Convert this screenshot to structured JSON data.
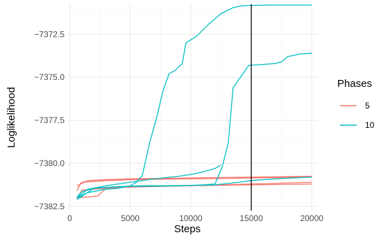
{
  "chart_data": {
    "type": "line",
    "xlabel": "Steps",
    "ylabel": "Loglikelihood",
    "xlim": [
      -200,
      20500
    ],
    "ylim": [
      -7382.75,
      -7370.75
    ],
    "xticks": [
      0,
      5000,
      10000,
      15000,
      20000
    ],
    "xtick_labels": [
      "0",
      "5000",
      "10000",
      "15000",
      "20000"
    ],
    "yticks": [
      -7382.5,
      -7380.0,
      -7377.5,
      -7375.0,
      -7372.5
    ],
    "ytick_labels": [
      "−7382.5",
      "−7380.0",
      "−7377.5",
      "−7375.0",
      "−7372.5"
    ],
    "grid": true,
    "vline_x": 15000,
    "legend": {
      "title": "Phases",
      "position": "right",
      "entries": [
        {
          "label": "5",
          "color": "#F8766D"
        },
        {
          "label": "10",
          "color": "#00BFC4"
        }
      ]
    },
    "series": [
      {
        "group": "5",
        "color": "#F8766D",
        "x": [
          600,
          1500,
          2300,
          3000,
          5000,
          10000,
          15000,
          20000
        ],
        "y": [
          -7382.0,
          -7381.95,
          -7381.9,
          -7381.45,
          -7381.35,
          -7381.3,
          -7381.2,
          -7381.1
        ]
      },
      {
        "group": "5",
        "color": "#F8766D",
        "x": [
          600,
          900,
          1500,
          3000,
          5000,
          10000,
          15000,
          20000
        ],
        "y": [
          -7381.6,
          -7381.15,
          -7381.0,
          -7380.95,
          -7380.9,
          -7380.85,
          -7380.8,
          -7380.75
        ]
      },
      {
        "group": "5",
        "color": "#F8766D",
        "x": [
          600,
          1000,
          2000,
          4000,
          7000,
          10000,
          15000,
          20000
        ],
        "y": [
          -7382.05,
          -7381.55,
          -7381.5,
          -7381.4,
          -7381.35,
          -7381.3,
          -7381.25,
          -7381.2
        ]
      },
      {
        "group": "5",
        "color": "#F8766D",
        "x": [
          600,
          1200,
          2000,
          3000,
          5000,
          10000,
          15000,
          20000
        ],
        "y": [
          -7381.3,
          -7381.1,
          -7381.05,
          -7381.0,
          -7380.95,
          -7380.9,
          -7380.85,
          -7380.8
        ]
      },
      {
        "group": "10",
        "color": "#00BFC4",
        "x": [
          600,
          1500,
          3000,
          4000,
          5000,
          5500,
          6000,
          6600,
          7200,
          7700,
          8200,
          8700,
          9300,
          9600,
          10500,
          11500,
          12500,
          13500,
          14200,
          15000,
          16500,
          18000,
          20000
        ],
        "y": [
          -7382.0,
          -7381.7,
          -7381.5,
          -7381.45,
          -7381.3,
          -7381.1,
          -7380.7,
          -7378.8,
          -7377.3,
          -7375.8,
          -7374.8,
          -7374.6,
          -7374.2,
          -7373.0,
          -7372.6,
          -7371.9,
          -7371.3,
          -7370.95,
          -7370.85,
          -7370.82,
          -7370.8,
          -7370.8,
          -7370.8
        ]
      },
      {
        "group": "10",
        "color": "#00BFC4",
        "x": [
          600,
          2000,
          4000,
          6000,
          8000,
          10000,
          11000,
          12000,
          12600,
          13100,
          13500,
          14200,
          14800,
          16000,
          17000,
          17500,
          18000,
          19000,
          20000
        ],
        "y": [
          -7382.1,
          -7381.45,
          -7381.35,
          -7381.3,
          -7381.3,
          -7381.28,
          -7381.25,
          -7381.2,
          -7380.2,
          -7378.8,
          -7375.6,
          -7374.9,
          -7374.3,
          -7374.25,
          -7374.2,
          -7374.1,
          -7373.8,
          -7373.65,
          -7373.6
        ]
      },
      {
        "group": "10",
        "color": "#00BFC4",
        "x": [
          600,
          1500,
          3000,
          5000,
          7000,
          9000,
          10000,
          11000,
          12000,
          12500
        ],
        "y": [
          -7382.0,
          -7381.5,
          -7381.3,
          -7381.1,
          -7380.9,
          -7380.75,
          -7380.65,
          -7380.5,
          -7380.3,
          -7380.1
        ]
      },
      {
        "group": "10",
        "color": "#00BFC4",
        "x": [
          600,
          1000,
          2000,
          4000,
          8000,
          12000,
          14000,
          15000,
          17000,
          20000
        ],
        "y": [
          -7381.95,
          -7381.65,
          -7381.45,
          -7381.35,
          -7381.32,
          -7381.25,
          -7381.1,
          -7381.0,
          -7380.9,
          -7380.8
        ]
      }
    ]
  }
}
